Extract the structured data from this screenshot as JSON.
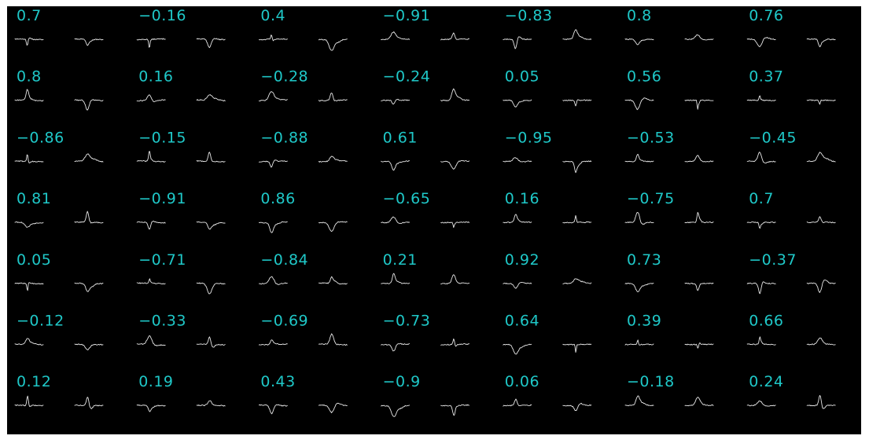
{
  "chart_data": {
    "type": "grid",
    "rows": 7,
    "cols": 7,
    "background": "#000000",
    "label_color": "#1fc8c8",
    "trace_color": "#e8e8e8",
    "values": [
      [
        "0.7",
        "−0.16",
        "0.4",
        "−0.91",
        "−0.83",
        "0.8",
        "0.76"
      ],
      [
        "0.8",
        "0.16",
        "−0.28",
        "−0.24",
        "0.05",
        "0.56",
        "0.37"
      ],
      [
        "−0.86",
        "−0.15",
        "−0.88",
        "0.61",
        "−0.95",
        "−0.53",
        "−0.45"
      ],
      [
        "0.81",
        "−0.91",
        "0.86",
        "−0.65",
        "0.16",
        "−0.75",
        "0.7"
      ],
      [
        "0.05",
        "−0.71",
        "−0.84",
        "0.21",
        "0.92",
        "0.73",
        "−0.37"
      ],
      [
        "−0.12",
        "−0.33",
        "−0.69",
        "−0.73",
        "0.64",
        "0.39",
        "0.66"
      ],
      [
        "0.12",
        "0.19",
        "0.43",
        "−0.9",
        "0.06",
        "−0.18",
        "0.24"
      ]
    ]
  }
}
